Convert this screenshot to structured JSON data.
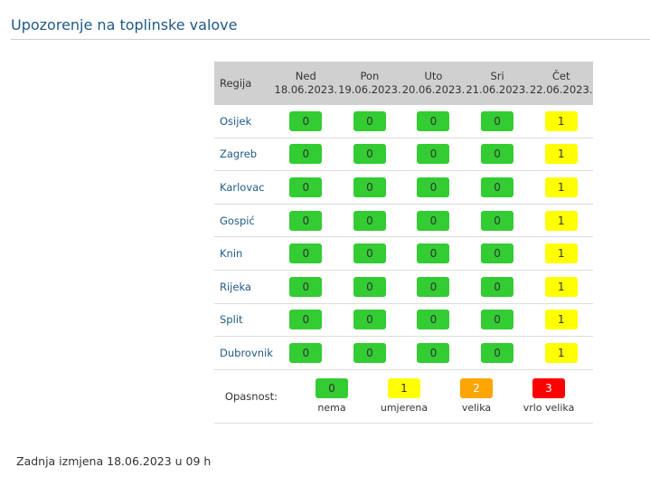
{
  "title": "Upozorenje na toplinske valove",
  "header": {
    "region_label": "Regija",
    "days": [
      {
        "day": "Ned",
        "date": "18.06.2023."
      },
      {
        "day": "Pon",
        "date": "19.06.2023."
      },
      {
        "day": "Uto",
        "date": "20.06.2023."
      },
      {
        "day": "Sri",
        "date": "21.06.2023."
      },
      {
        "day": "Čet",
        "date": "22.06.2023."
      }
    ]
  },
  "rows": [
    {
      "region": "Osijek",
      "levels": [
        0,
        0,
        0,
        0,
        1
      ]
    },
    {
      "region": "Zagreb",
      "levels": [
        0,
        0,
        0,
        0,
        1
      ]
    },
    {
      "region": "Karlovac",
      "levels": [
        0,
        0,
        0,
        0,
        1
      ]
    },
    {
      "region": "Gospić",
      "levels": [
        0,
        0,
        0,
        0,
        1
      ]
    },
    {
      "region": "Knin",
      "levels": [
        0,
        0,
        0,
        0,
        1
      ]
    },
    {
      "region": "Rijeka",
      "levels": [
        0,
        0,
        0,
        0,
        1
      ]
    },
    {
      "region": "Split",
      "levels": [
        0,
        0,
        0,
        0,
        1
      ]
    },
    {
      "region": "Dubrovnik",
      "levels": [
        0,
        0,
        0,
        0,
        1
      ]
    }
  ],
  "legend": {
    "label": "Opasnost:",
    "items": [
      {
        "level": "0",
        "text": "nema",
        "color": "#33cc33",
        "fg": "#333"
      },
      {
        "level": "1",
        "text": "umjerena",
        "color": "#ffff00",
        "fg": "#333"
      },
      {
        "level": "2",
        "text": "velika",
        "color": "#ffa500",
        "fg": "#fff"
      },
      {
        "level": "3",
        "text": "vrlo velika",
        "color": "#ff0000",
        "fg": "#fff"
      }
    ]
  },
  "footer": "Zadnja izmjena 18.06.2023 u 09 h"
}
